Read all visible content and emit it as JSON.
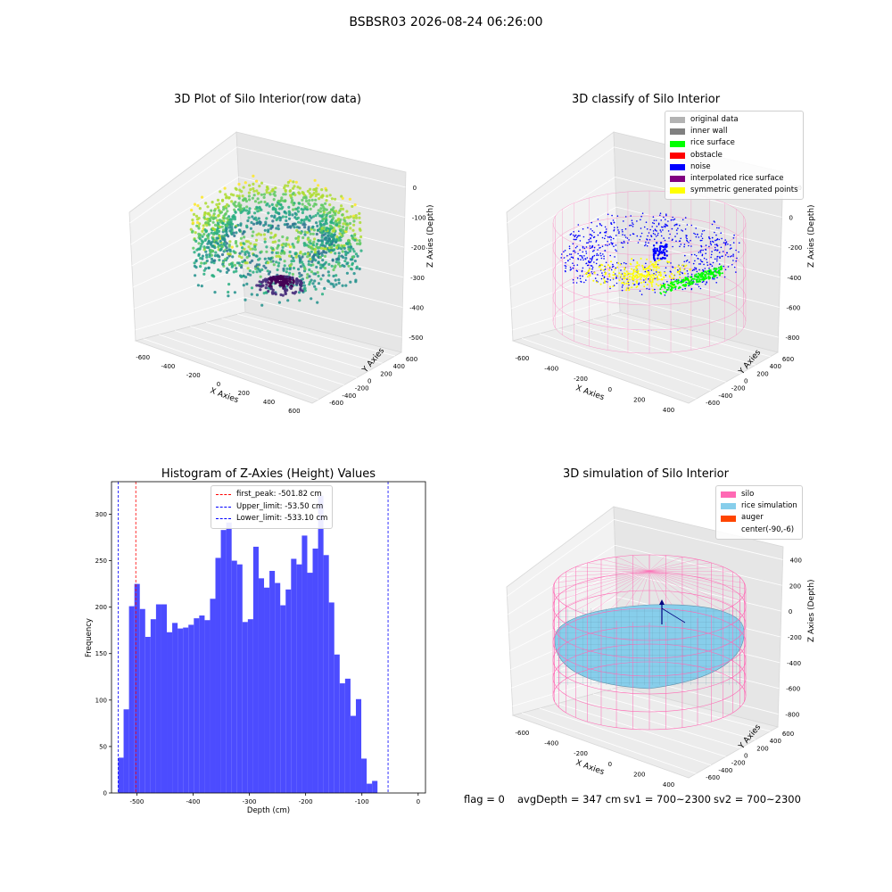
{
  "figure": {
    "title": "BSBSR03 2026-08-24 06:26:00",
    "status": {
      "flag": "flag = 0",
      "avg_depth": "avgDepth = 347 cm",
      "sv1": "sv1 = 700~2300",
      "sv2": "sv2 = 700~2300"
    }
  },
  "chart_data": [
    {
      "type": "scatter",
      "title": "3D Plot of Silo Interior(row data)",
      "xlabel": "X Axies",
      "ylabel": "Y Axies",
      "zlabel": "Z Axies (Depth)",
      "x_ticks": [
        "-600",
        "-400",
        "-200",
        "0",
        "200",
        "400",
        "600"
      ],
      "y_ticks": [
        "-600",
        "-400",
        "-200",
        "0",
        "200",
        "400",
        "600"
      ],
      "z_ticks": [
        "0",
        "-100",
        "-200",
        "-300",
        "-400",
        "-500"
      ],
      "colormap": "viridis",
      "grid": true
    },
    {
      "type": "scatter",
      "title": "3D classify of Silo Interior",
      "x_ticks": [
        "-600",
        "-400",
        "-200",
        "0",
        "200",
        "400"
      ],
      "y_ticks": [
        "-600",
        "-400",
        "-200",
        "0",
        "200",
        "400",
        "600"
      ],
      "z_ticks": [
        "200",
        "0",
        "-200",
        "-400",
        "-600",
        "-800"
      ],
      "xlabel": "X Axies",
      "ylabel": "Y Axies",
      "zlabel": "Z Axies (Depth)",
      "legend": [
        {
          "name": "original data",
          "color": "#b3b3b3"
        },
        {
          "name": "inner wall",
          "color": "#808080"
        },
        {
          "name": "rice surface",
          "color": "#00ff00"
        },
        {
          "name": "obstacle",
          "color": "#ff0000"
        },
        {
          "name": "noise",
          "color": "#0000ff"
        },
        {
          "name": "interpolated rice surface",
          "color": "#800080"
        },
        {
          "name": "symmetric generated points",
          "color": "#ffff00"
        }
      ],
      "legend_position": "upper-right",
      "grid": true
    },
    {
      "type": "bar",
      "title": "Histogram of Z-Axies (Height) Values",
      "xlabel": "Depth (cm)",
      "ylabel": "Frequency",
      "xlim": [
        -545,
        13
      ],
      "ylim": [
        0,
        335
      ],
      "x_ticks": [
        -500,
        -400,
        -300,
        -200,
        -100,
        0
      ],
      "y_ticks": [
        0,
        50,
        100,
        150,
        200,
        250,
        300
      ],
      "bin_start": -533.1,
      "bin_width": 9.6,
      "values": [
        38,
        90,
        201,
        225,
        198,
        168,
        187,
        203,
        203,
        173,
        183,
        177,
        178,
        181,
        188,
        191,
        186,
        209,
        253,
        283,
        291,
        250,
        246,
        184,
        187,
        265,
        231,
        221,
        239,
        226,
        202,
        219,
        252,
        246,
        277,
        237,
        263,
        320,
        256,
        205,
        149,
        118,
        123,
        83,
        101,
        37,
        10,
        13
      ],
      "bar_color": "#4c4cff",
      "lines": [
        {
          "label": "first_peak: -501.82 cm",
          "x": -501.82,
          "color": "#ff0000"
        },
        {
          "label": "Upper_limit: -53.50 cm",
          "x": -53.5,
          "color": "#0000ff"
        },
        {
          "label": "Lower_limit: -533.10 cm",
          "x": -533.1,
          "color": "#0000ff"
        }
      ],
      "legend_position": "upper-center"
    },
    {
      "type": "scatter",
      "title": "3D simulation of Silo Interior",
      "x_ticks": [
        "-600",
        "-400",
        "-200",
        "0",
        "200",
        "400"
      ],
      "y_ticks": [
        "-600",
        "-400",
        "-200",
        "0",
        "200",
        "400",
        "600"
      ],
      "z_ticks": [
        "400",
        "200",
        "0",
        "-200",
        "-400",
        "-600",
        "-800"
      ],
      "xlabel": "X Axies",
      "ylabel": "Y Axies",
      "zlabel": "Z Axies (Depth)",
      "legend": [
        {
          "name": "silo",
          "color": "#ff69b4"
        },
        {
          "name": "rice simulation",
          "color": "#87ceeb"
        },
        {
          "name": "auger",
          "color": "#ff4500"
        },
        {
          "name": "center(-90,-6)",
          "color": ""
        }
      ],
      "legend_position": "upper-right",
      "grid": true
    }
  ]
}
